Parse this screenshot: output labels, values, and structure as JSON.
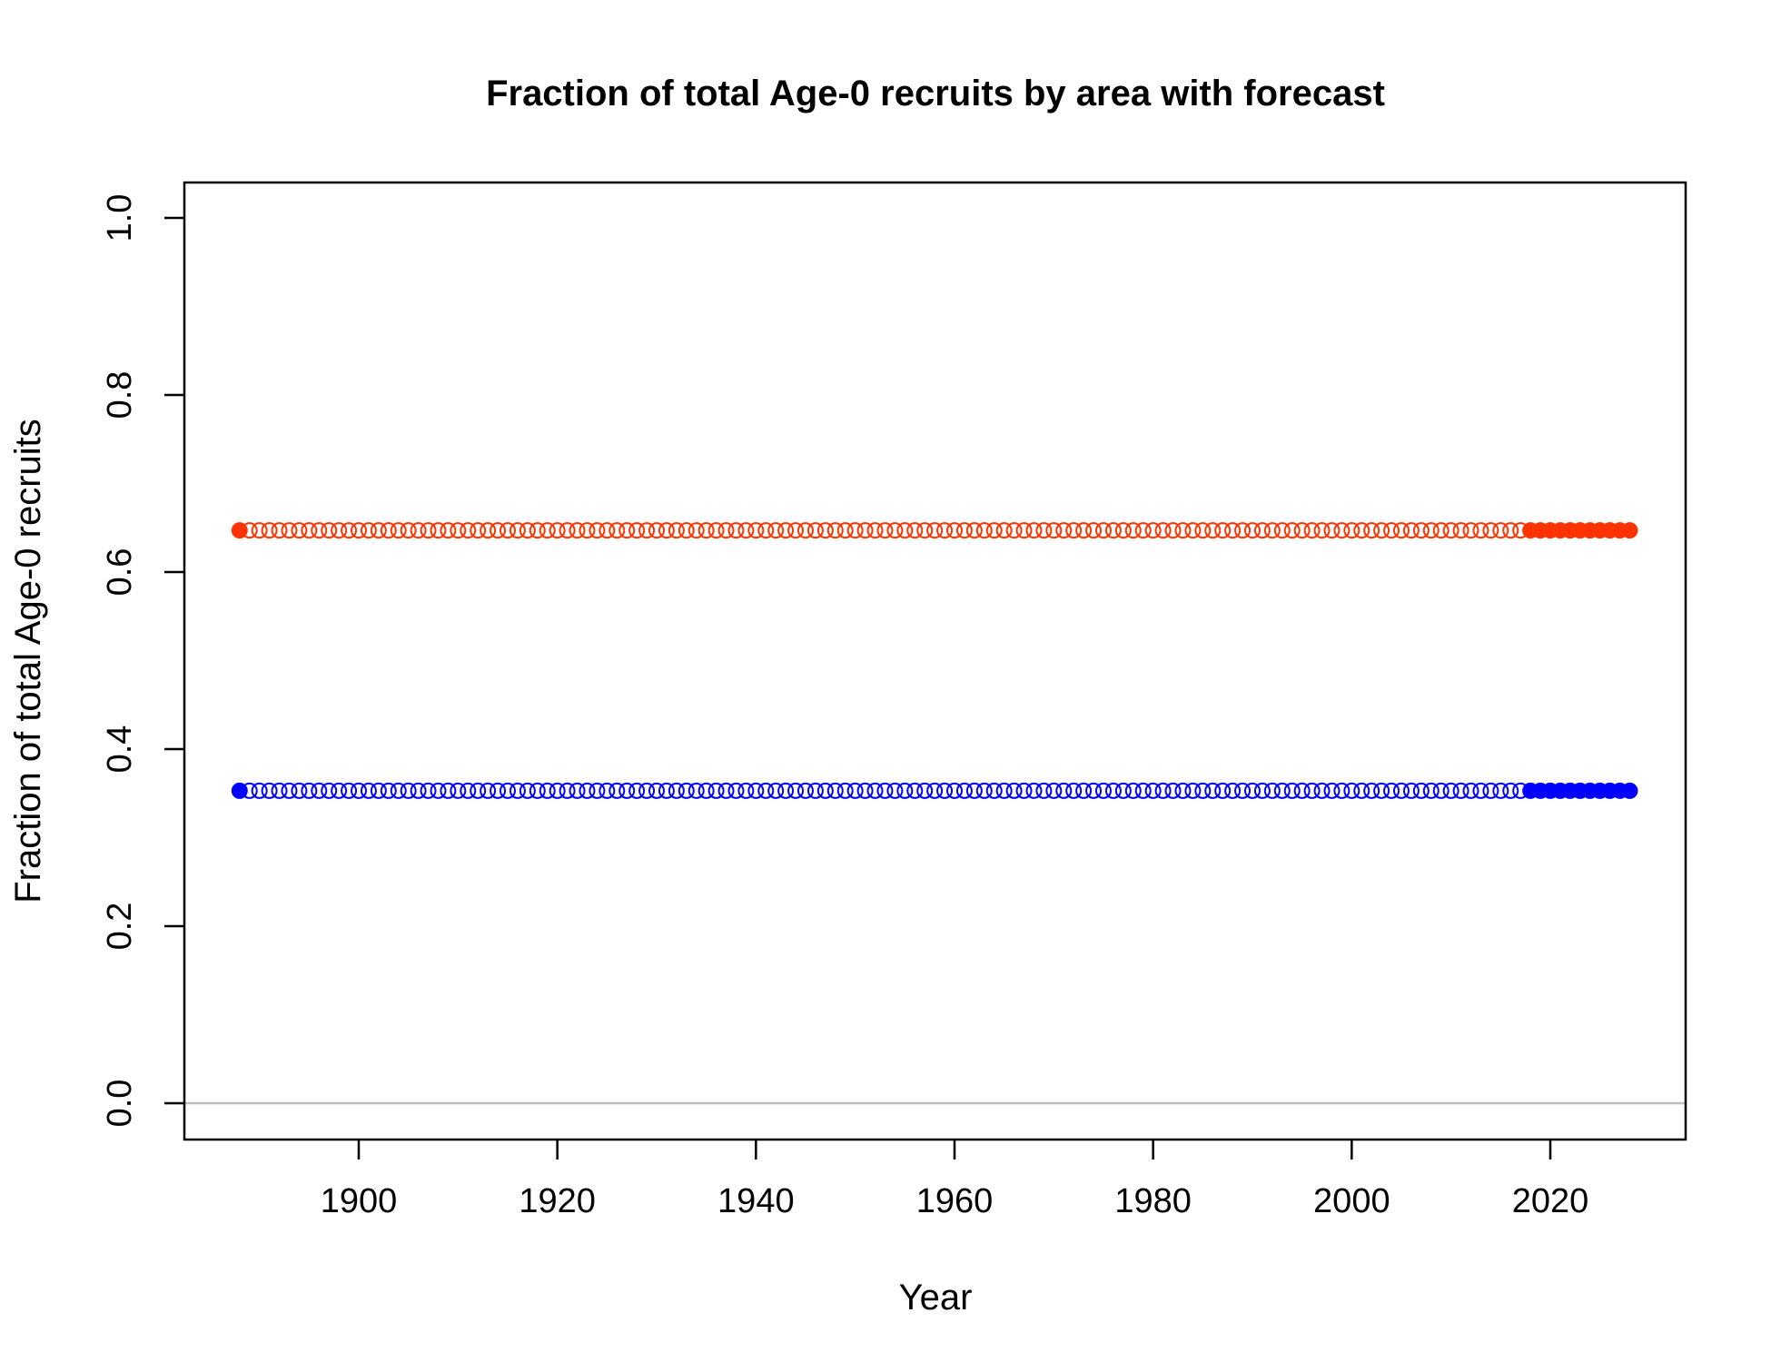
{
  "chart_data": {
    "type": "scatter",
    "title": "Fraction of total Age-0 recruits by area with forecast",
    "xlabel": "Year",
    "ylabel": "Fraction of total Age-0 recruits",
    "xlim": [
      1888,
      2028
    ],
    "ylim": [
      0.0,
      1.0
    ],
    "x_ticks": [
      1900,
      1920,
      1940,
      1960,
      1980,
      2000,
      2020
    ],
    "x_tick_labels": [
      "1900",
      "1920",
      "1940",
      "1960",
      "1980",
      "2000",
      "2020"
    ],
    "y_ticks": [
      0.0,
      0.2,
      0.4,
      0.6,
      0.8,
      1.0
    ],
    "y_tick_labels": [
      "0.0",
      "0.2",
      "0.4",
      "0.6",
      "0.8",
      "1.0"
    ],
    "grid": false,
    "reference_line_y": 0.0,
    "years": {
      "start": 1888,
      "end": 2028
    },
    "forecast_start_year": 2018,
    "series": [
      {
        "value": 0.647,
        "color": "#FF3300"
      },
      {
        "value": 0.353,
        "color": "#0000FF"
      }
    ]
  }
}
